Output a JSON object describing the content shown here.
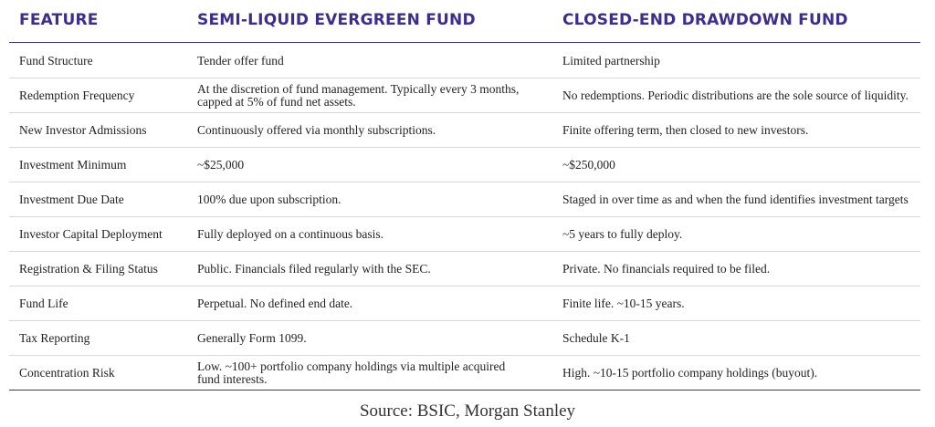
{
  "headers": {
    "feature": "FEATURE",
    "evergreen": "SEMI-LIQUID EVERGREEN FUND",
    "drawdown": "CLOSED-END DRAWDOWN FUND"
  },
  "rows": [
    {
      "feature": "Fund Structure",
      "evergreen": "Tender offer fund",
      "drawdown": "Limited partnership"
    },
    {
      "feature": "Redemption Frequency",
      "evergreen": "At the discretion of fund management. Typically every 3 months, capped at 5% of fund net assets.",
      "drawdown": "No redemptions. Periodic distributions are the sole source of liquidity."
    },
    {
      "feature": "New Investor Admissions",
      "evergreen": "Continuously offered via monthly subscriptions.",
      "drawdown": "Finite offering term, then closed to new investors."
    },
    {
      "feature": "Investment Minimum",
      "evergreen": "~$25,000",
      "drawdown": "~$250,000"
    },
    {
      "feature": "Investment Due Date",
      "evergreen": "100% due upon subscription.",
      "drawdown": "Staged in over time as and when the fund identifies investment targets"
    },
    {
      "feature": "Investor Capital Deployment",
      "evergreen": "Fully deployed on a continuous basis.",
      "drawdown": "~5 years to fully deploy."
    },
    {
      "feature": "Registration & Filing Status",
      "evergreen": "Public. Financials filed regularly with the SEC.",
      "drawdown": "Private. No financials required to be filed."
    },
    {
      "feature": "Fund Life",
      "evergreen": "Perpetual. No defined end date.",
      "drawdown": "Finite life. ~10-15 years."
    },
    {
      "feature": "Tax Reporting",
      "evergreen": "Generally Form 1099.",
      "drawdown": "Schedule K-1"
    },
    {
      "feature": "Concentration Risk",
      "evergreen": "Low. ~100+ portfolio company holdings via multiple acquired fund interests.",
      "drawdown": "High. ~10-15 portfolio company holdings (buyout)."
    }
  ],
  "source": "Source: BSIC, Morgan Stanley",
  "colors": {
    "header_text": "#3b2e8c",
    "rule": "#3b2e8c",
    "row_divider": "#d8d8d8"
  }
}
